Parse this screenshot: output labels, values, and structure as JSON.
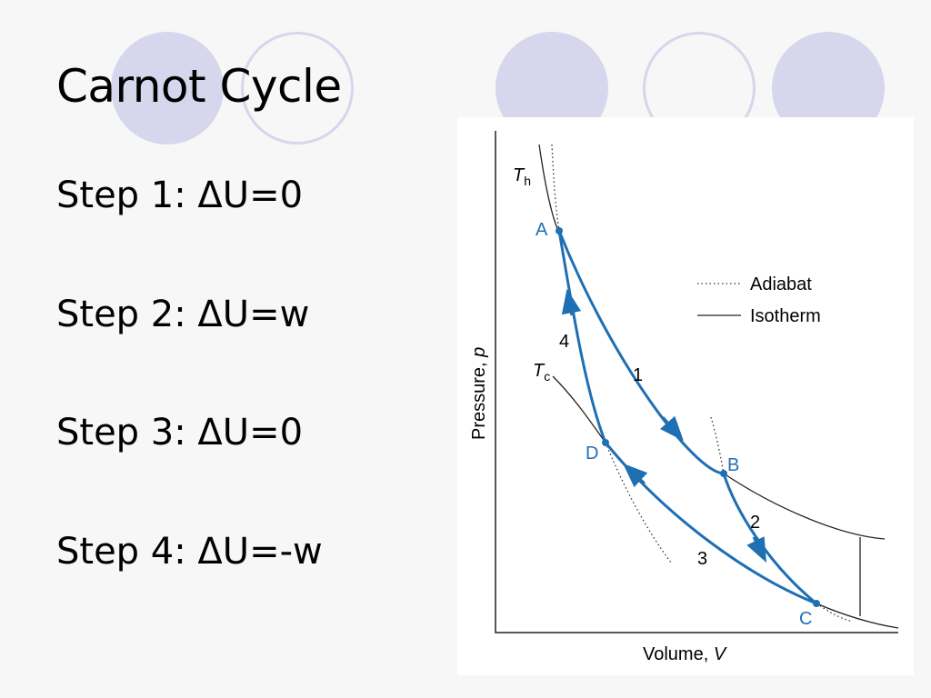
{
  "slide": {
    "title": "Carnot Cycle",
    "steps": [
      "Step 1: ΔU=0",
      "Step 2: ΔU=w",
      "Step 3: ΔU=0",
      "Step 4: ΔU=-w"
    ]
  },
  "diagram": {
    "x_axis_label": "Volume, ",
    "x_axis_var": "V",
    "y_axis_label": "Pressure, ",
    "y_axis_var": "p",
    "hot_isotherm": {
      "symbol": "T",
      "subscript": "h"
    },
    "cold_isotherm": {
      "symbol": "T",
      "subscript": "c"
    },
    "points": [
      "A",
      "B",
      "C",
      "D"
    ],
    "step_numbers": [
      "1",
      "2",
      "3",
      "4"
    ],
    "legend": {
      "adiabat": "Adiabat",
      "isotherm": "Isotherm"
    }
  },
  "colors": {
    "background": "#f7f7f7",
    "decor": "#d6d6ec",
    "cycle": "#1f6fb3",
    "curve": "#222222"
  }
}
